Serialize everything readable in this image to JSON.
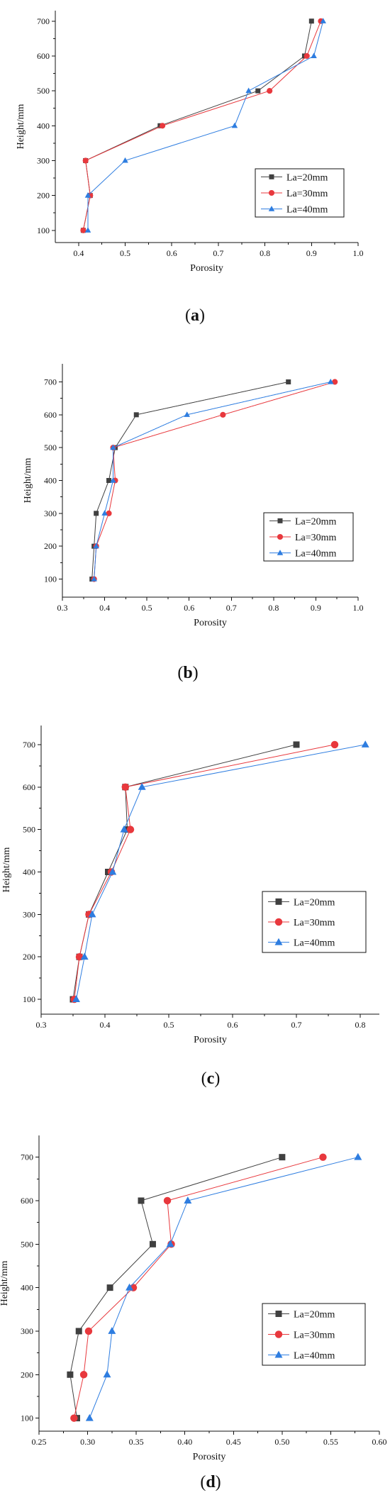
{
  "styles": {
    "colors": {
      "La=20mm": "#404040",
      "La=30mm": "#e8383d",
      "La=40mm": "#2e7de0"
    },
    "markers": {
      "La=20mm": "square",
      "La=30mm": "circle",
      "La=40mm": "triangle"
    },
    "legend_placement": "center-right"
  },
  "chart_data": [
    {
      "type": "line",
      "caption_open": "(",
      "caption_letter": "a",
      "caption_close": ")",
      "xlabel": "Porosity",
      "ylabel": "Height/mm",
      "xlim": [
        0.35,
        1.0
      ],
      "ylim": [
        65,
        730
      ],
      "xticks": [
        "0.4",
        "0.5",
        "0.6",
        "0.7",
        "0.8",
        "0.9",
        "1.0"
      ],
      "yticks": [
        "100",
        "200",
        "300",
        "400",
        "500",
        "600",
        "700"
      ],
      "grid": false,
      "legend_placement": "center-right",
      "series": [
        {
          "name": "La=20mm",
          "x": [
            0.41,
            0.425,
            0.415,
            0.575,
            0.785,
            0.885,
            0.9
          ],
          "y": [
            100,
            200,
            300,
            400,
            500,
            600,
            700
          ]
        },
        {
          "name": "La=30mm",
          "x": [
            0.41,
            0.425,
            0.415,
            0.58,
            0.81,
            0.89,
            0.92
          ],
          "y": [
            100,
            200,
            300,
            400,
            500,
            600,
            700
          ]
        },
        {
          "name": "La=40mm",
          "x": [
            0.42,
            0.42,
            0.5,
            0.735,
            0.765,
            0.905,
            0.925
          ],
          "y": [
            100,
            200,
            300,
            400,
            500,
            600,
            700
          ]
        }
      ]
    },
    {
      "type": "line",
      "caption_open": "(",
      "caption_letter": "b",
      "caption_close": ")",
      "xlabel": "Porosity",
      "ylabel": "Height/mm",
      "xlim": [
        0.3,
        1.0
      ],
      "ylim": [
        45,
        755
      ],
      "xticks": [
        "0.3",
        "0.4",
        "0.5",
        "0.6",
        "0.7",
        "0.8",
        "0.9",
        "1.0"
      ],
      "yticks": [
        "100",
        "200",
        "300",
        "400",
        "500",
        "600",
        "700"
      ],
      "grid": false,
      "legend_placement": "center-right",
      "series": [
        {
          "name": "La=20mm",
          "x": [
            0.37,
            0.375,
            0.38,
            0.41,
            0.425,
            0.475,
            0.835
          ],
          "y": [
            100,
            200,
            300,
            400,
            500,
            600,
            700
          ]
        },
        {
          "name": "La=30mm",
          "x": [
            0.375,
            0.38,
            0.41,
            0.425,
            0.42,
            0.68,
            0.945
          ],
          "y": [
            100,
            200,
            300,
            400,
            500,
            600,
            700
          ]
        },
        {
          "name": "La=40mm",
          "x": [
            0.375,
            0.38,
            0.4,
            0.42,
            0.42,
            0.595,
            0.935
          ],
          "y": [
            100,
            200,
            300,
            400,
            500,
            600,
            700
          ]
        }
      ]
    },
    {
      "type": "line",
      "caption_open": "(",
      "caption_letter": "c",
      "caption_close": ")",
      "xlabel": "Porosity",
      "ylabel": "Height/mm",
      "xlim": [
        0.3,
        0.83
      ],
      "ylim": [
        65,
        745
      ],
      "xticks": [
        "0.3",
        "0.4",
        "0.5",
        "0.6",
        "0.7",
        "0.8"
      ],
      "yticks": [
        "100",
        "200",
        "300",
        "400",
        "500",
        "600",
        "700"
      ],
      "grid": false,
      "legend_placement": "center-right",
      "series": [
        {
          "name": "La=20mm",
          "x": [
            0.35,
            0.36,
            0.375,
            0.405,
            0.435,
            0.432,
            0.7
          ],
          "y": [
            100,
            200,
            300,
            400,
            500,
            600,
            700
          ]
        },
        {
          "name": "La=30mm",
          "x": [
            0.352,
            0.36,
            0.375,
            0.41,
            0.44,
            0.432,
            0.76
          ],
          "y": [
            100,
            200,
            300,
            400,
            500,
            600,
            700
          ]
        },
        {
          "name": "La=40mm",
          "x": [
            0.355,
            0.368,
            0.38,
            0.412,
            0.43,
            0.458,
            0.808
          ],
          "y": [
            100,
            200,
            300,
            400,
            500,
            600,
            700
          ]
        }
      ]
    },
    {
      "type": "line",
      "caption_open": "(",
      "caption_letter": "d",
      "caption_close": ")",
      "xlabel": "Porosity",
      "ylabel": "Height/mm",
      "xlim": [
        0.25,
        0.6
      ],
      "ylim": [
        70,
        750
      ],
      "xticks": [
        "0.25",
        "0.30",
        "0.35",
        "0.40",
        "0.45",
        "0.50",
        "0.55",
        "0.60"
      ],
      "yticks": [
        "100",
        "200",
        "300",
        "400",
        "500",
        "600",
        "700"
      ],
      "grid": false,
      "legend_placement": "bottom-right",
      "series": [
        {
          "name": "La=20mm",
          "x": [
            0.289,
            0.282,
            0.291,
            0.323,
            0.367,
            0.355,
            0.5
          ],
          "y": [
            100,
            200,
            300,
            400,
            500,
            600,
            700
          ]
        },
        {
          "name": "La=30mm",
          "x": [
            0.286,
            0.296,
            0.301,
            0.347,
            0.386,
            0.382,
            0.542
          ],
          "y": [
            100,
            200,
            300,
            400,
            500,
            600,
            700
          ]
        },
        {
          "name": "La=40mm",
          "x": [
            0.302,
            0.32,
            0.325,
            0.343,
            0.385,
            0.403,
            0.578
          ],
          "y": [
            100,
            200,
            300,
            400,
            500,
            600,
            700
          ]
        }
      ]
    }
  ]
}
